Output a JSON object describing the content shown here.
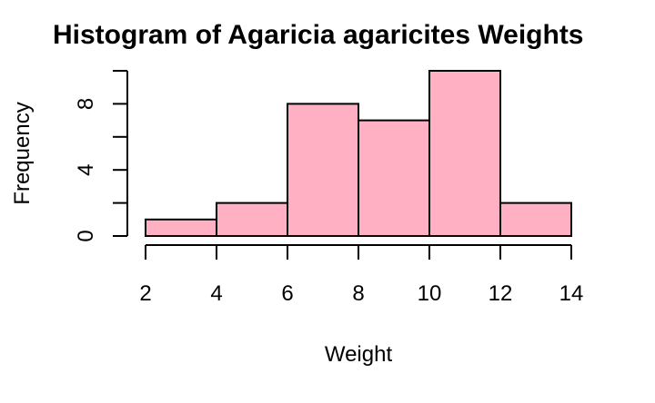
{
  "chart_data": {
    "type": "bar",
    "title": "Histogram of Agaricia agaricites Weights",
    "xlabel": "Weight",
    "ylabel": "Frequency",
    "bins": [
      [
        2,
        4
      ],
      [
        4,
        6
      ],
      [
        6,
        8
      ],
      [
        8,
        10
      ],
      [
        10,
        12
      ],
      [
        12,
        14
      ]
    ],
    "values": [
      1,
      2,
      8,
      7,
      10,
      2
    ],
    "xlim": [
      2,
      14
    ],
    "ylim": [
      0,
      10
    ],
    "x_ticks": [
      2,
      4,
      6,
      8,
      10,
      12,
      14
    ],
    "y_ticks": [
      0,
      2,
      4,
      6,
      8,
      10
    ],
    "y_tick_labels": [
      "0",
      "",
      "4",
      "",
      "8",
      ""
    ],
    "bar_color": "#ffb0c2",
    "grid": false
  }
}
